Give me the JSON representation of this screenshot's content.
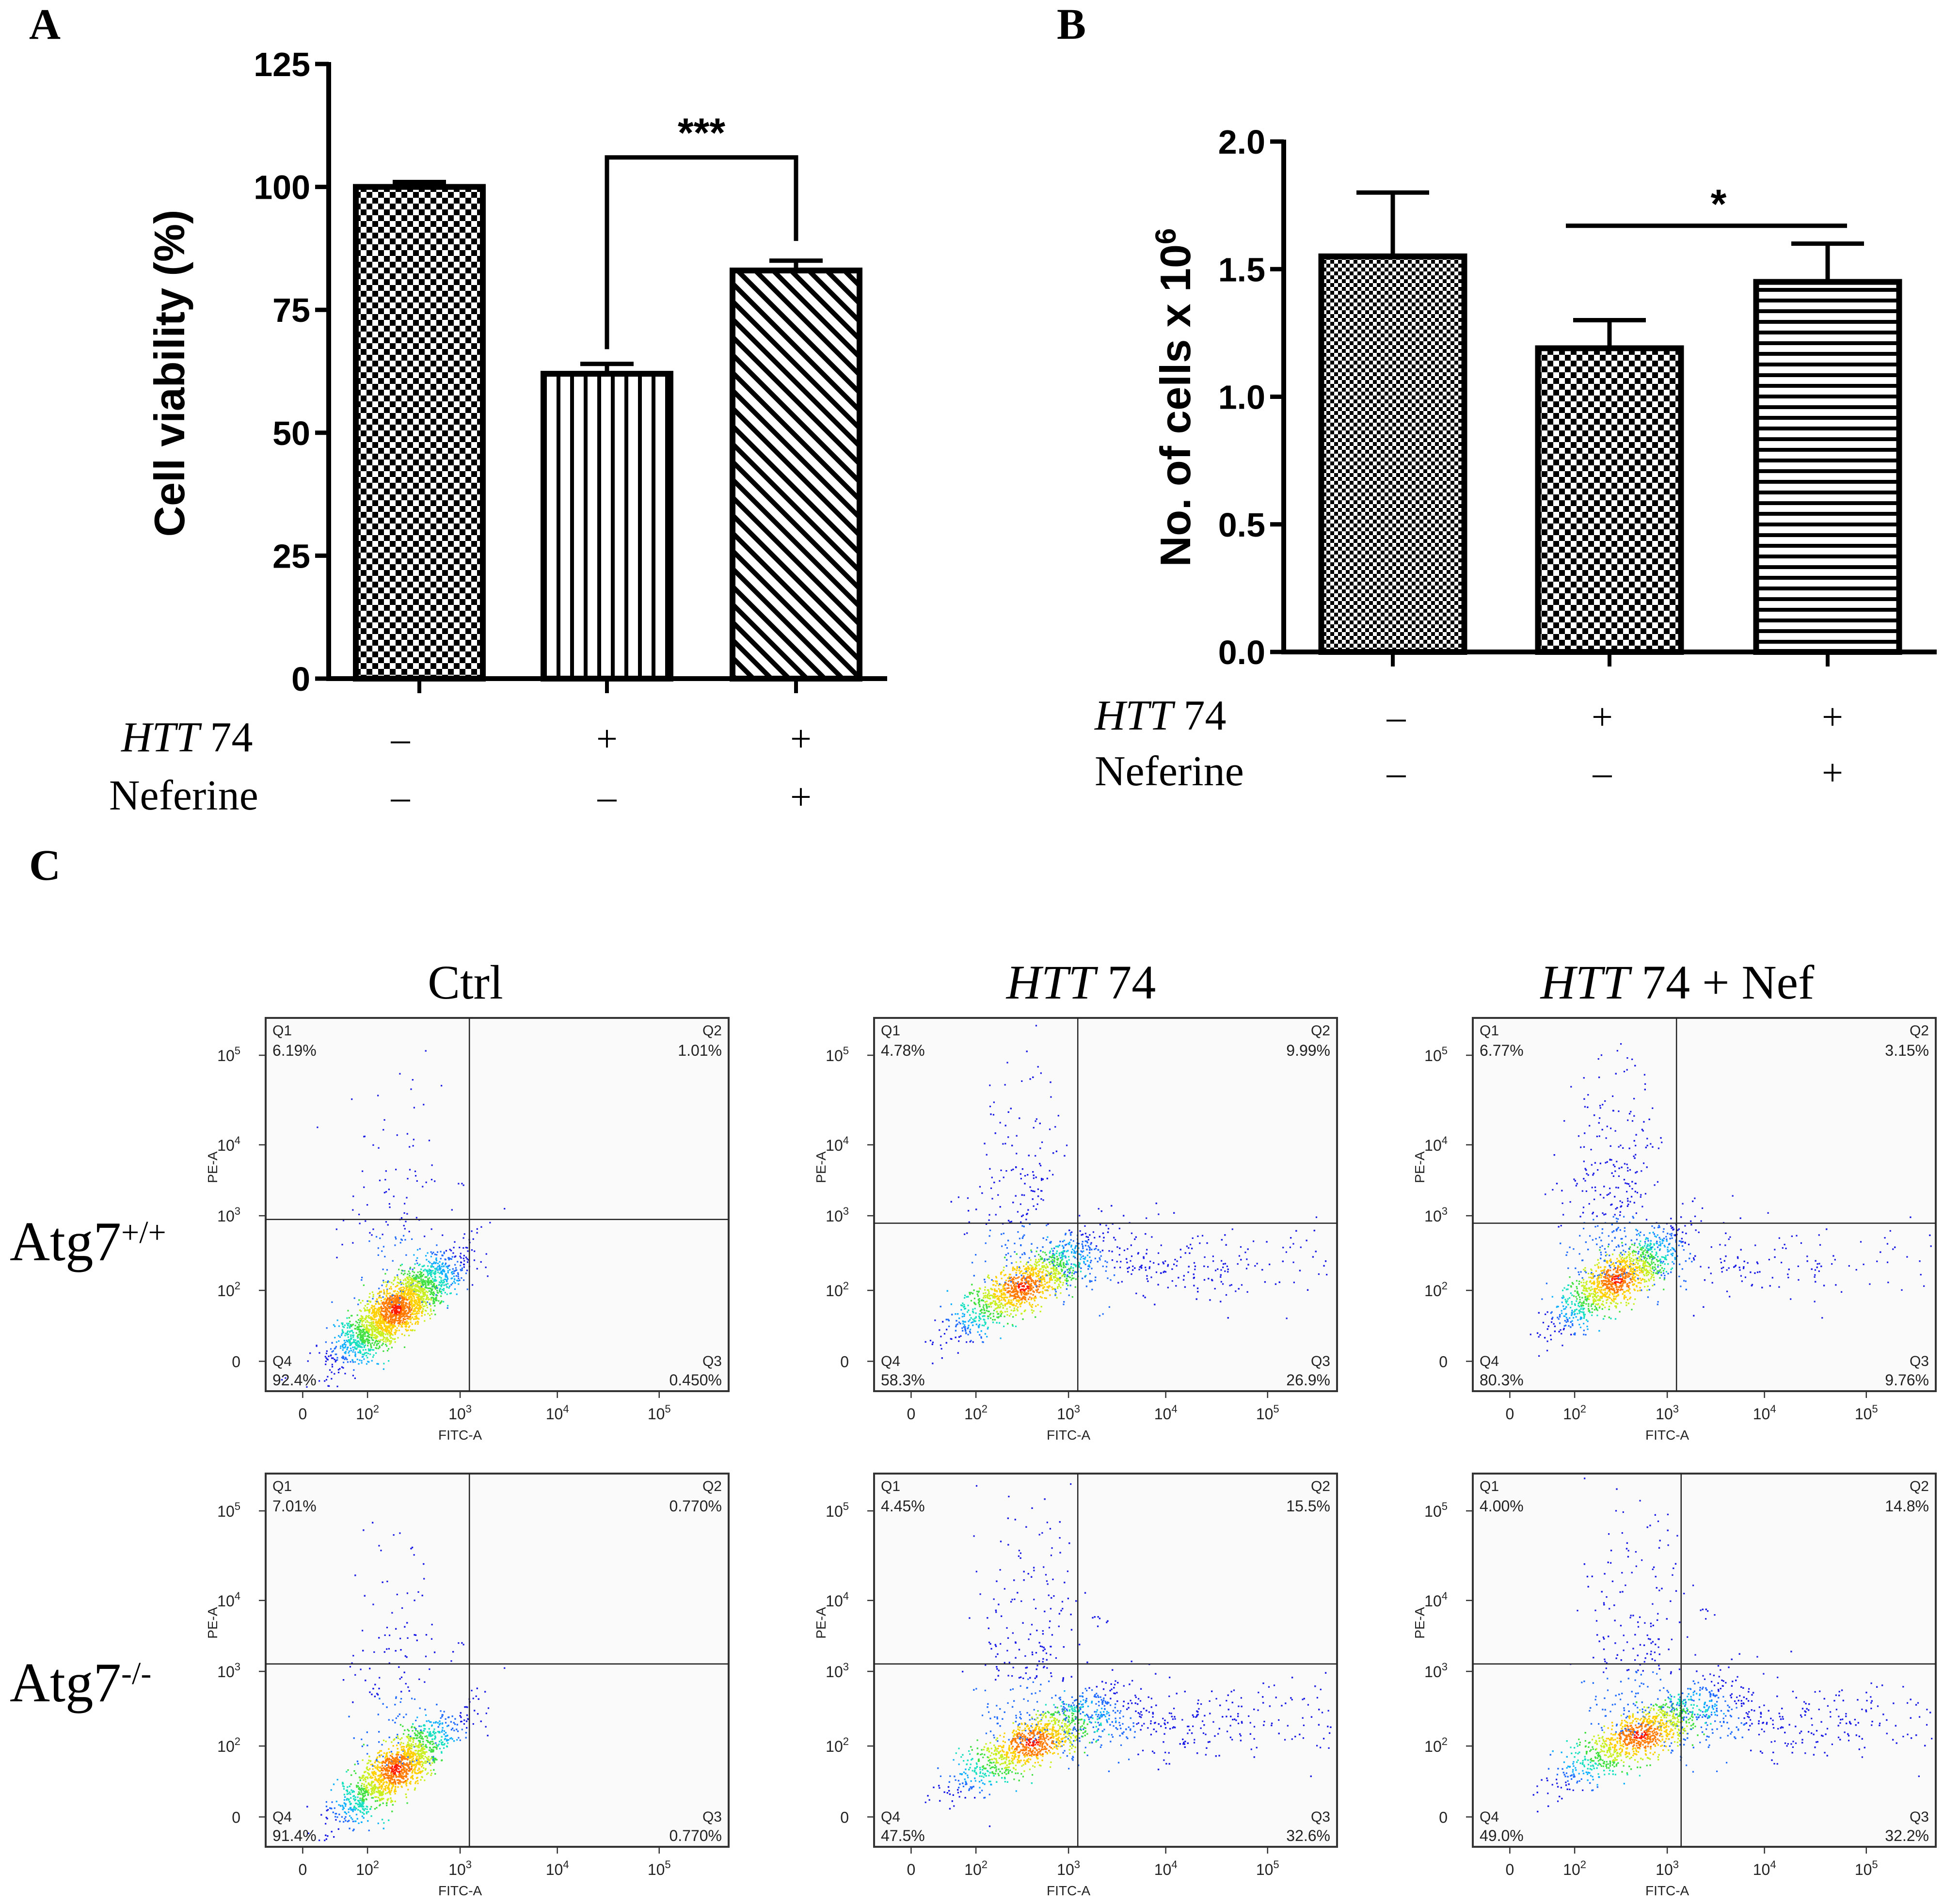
{
  "chart_data": [
    {
      "type": "bar",
      "panel": "A",
      "ylabel": "Cell viability (%)",
      "ylim": [
        0,
        125
      ],
      "yticks": [
        "0",
        "25",
        "50",
        "75",
        "100",
        "125"
      ],
      "categories": [
        "HTT74-/Nef-",
        "HTT74+/Nef-",
        "HTT74+/Nef+"
      ],
      "values": [
        100,
        62,
        83
      ],
      "errors": [
        1,
        2,
        2
      ],
      "patterns": [
        "checker",
        "vertical",
        "diagonal"
      ],
      "treatments": [
        {
          "label_italic": "HTT",
          "label_rest": " 74",
          "signs": [
            "–",
            "+",
            "+"
          ]
        },
        {
          "label_italic": "",
          "label_rest": "Neferine",
          "signs": [
            "–",
            "–",
            "+"
          ]
        }
      ],
      "significance": {
        "from": 1,
        "to": 2,
        "label": "***"
      }
    },
    {
      "type": "bar",
      "panel": "B",
      "ylabel": "No. of cells x 10",
      "ylabel_sup": "6",
      "ylim": [
        0,
        2.0
      ],
      "yticks": [
        "0.0",
        "0.5",
        "1.0",
        "1.5",
        "2.0"
      ],
      "categories": [
        "HTT74-/Nef-",
        "HTT74+/Nef-",
        "HTT74+/Nef+"
      ],
      "values": [
        1.55,
        1.19,
        1.45
      ],
      "errors": [
        0.25,
        0.11,
        0.15
      ],
      "patterns": [
        "fine-checker",
        "checker",
        "horizontal"
      ],
      "treatments": [
        {
          "label_italic": "HTT",
          "label_rest": " 74",
          "signs": [
            "–",
            "+",
            "+"
          ]
        },
        {
          "label_italic": "",
          "label_rest": "Neferine",
          "signs": [
            "–",
            "–",
            "+"
          ]
        }
      ],
      "significance": {
        "from": 1,
        "to": 2,
        "label": "*"
      }
    },
    {
      "type": "scatter",
      "panel": "C",
      "xlabel": "FITC-A",
      "ylabel": "PE-A",
      "tick_labels": [
        "0",
        "10",
        "10",
        "10",
        "10"
      ],
      "tick_exponents": [
        "",
        "2",
        "3",
        "4",
        "5"
      ],
      "columns": [
        {
          "italic": "",
          "rest": "Ctrl"
        },
        {
          "italic": "HTT",
          "rest": " 74"
        },
        {
          "italic": "HTT",
          "rest": " 74 + Nef"
        }
      ],
      "rows": [
        {
          "label": "Atg7",
          "sup": "+/+"
        },
        {
          "label": "Atg7",
          "sup": "-/-"
        }
      ],
      "quadrant_names": [
        "Q1",
        "Q2",
        "Q3",
        "Q4"
      ],
      "plots": [
        {
          "row": 0,
          "col": 0,
          "Q1": "6.19%",
          "Q2": "1.01%",
          "Q3": "0.450%",
          "Q4": "92.4%"
        },
        {
          "row": 0,
          "col": 1,
          "Q1": "4.78%",
          "Q2": "9.99%",
          "Q3": "26.9%",
          "Q4": "58.3%"
        },
        {
          "row": 0,
          "col": 2,
          "Q1": "6.77%",
          "Q2": "3.15%",
          "Q3": "9.76%",
          "Q4": "80.3%"
        },
        {
          "row": 1,
          "col": 0,
          "Q1": "7.01%",
          "Q2": "0.770%",
          "Q3": "0.770%",
          "Q4": "91.4%"
        },
        {
          "row": 1,
          "col": 1,
          "Q1": "4.45%",
          "Q2": "15.5%",
          "Q3": "32.6%",
          "Q4": "47.5%"
        },
        {
          "row": 1,
          "col": 2,
          "Q1": "4.00%",
          "Q2": "14.8%",
          "Q3": "32.2%",
          "Q4": "49.0%"
        }
      ]
    }
  ],
  "panel_letters": [
    "A",
    "B",
    "C"
  ]
}
